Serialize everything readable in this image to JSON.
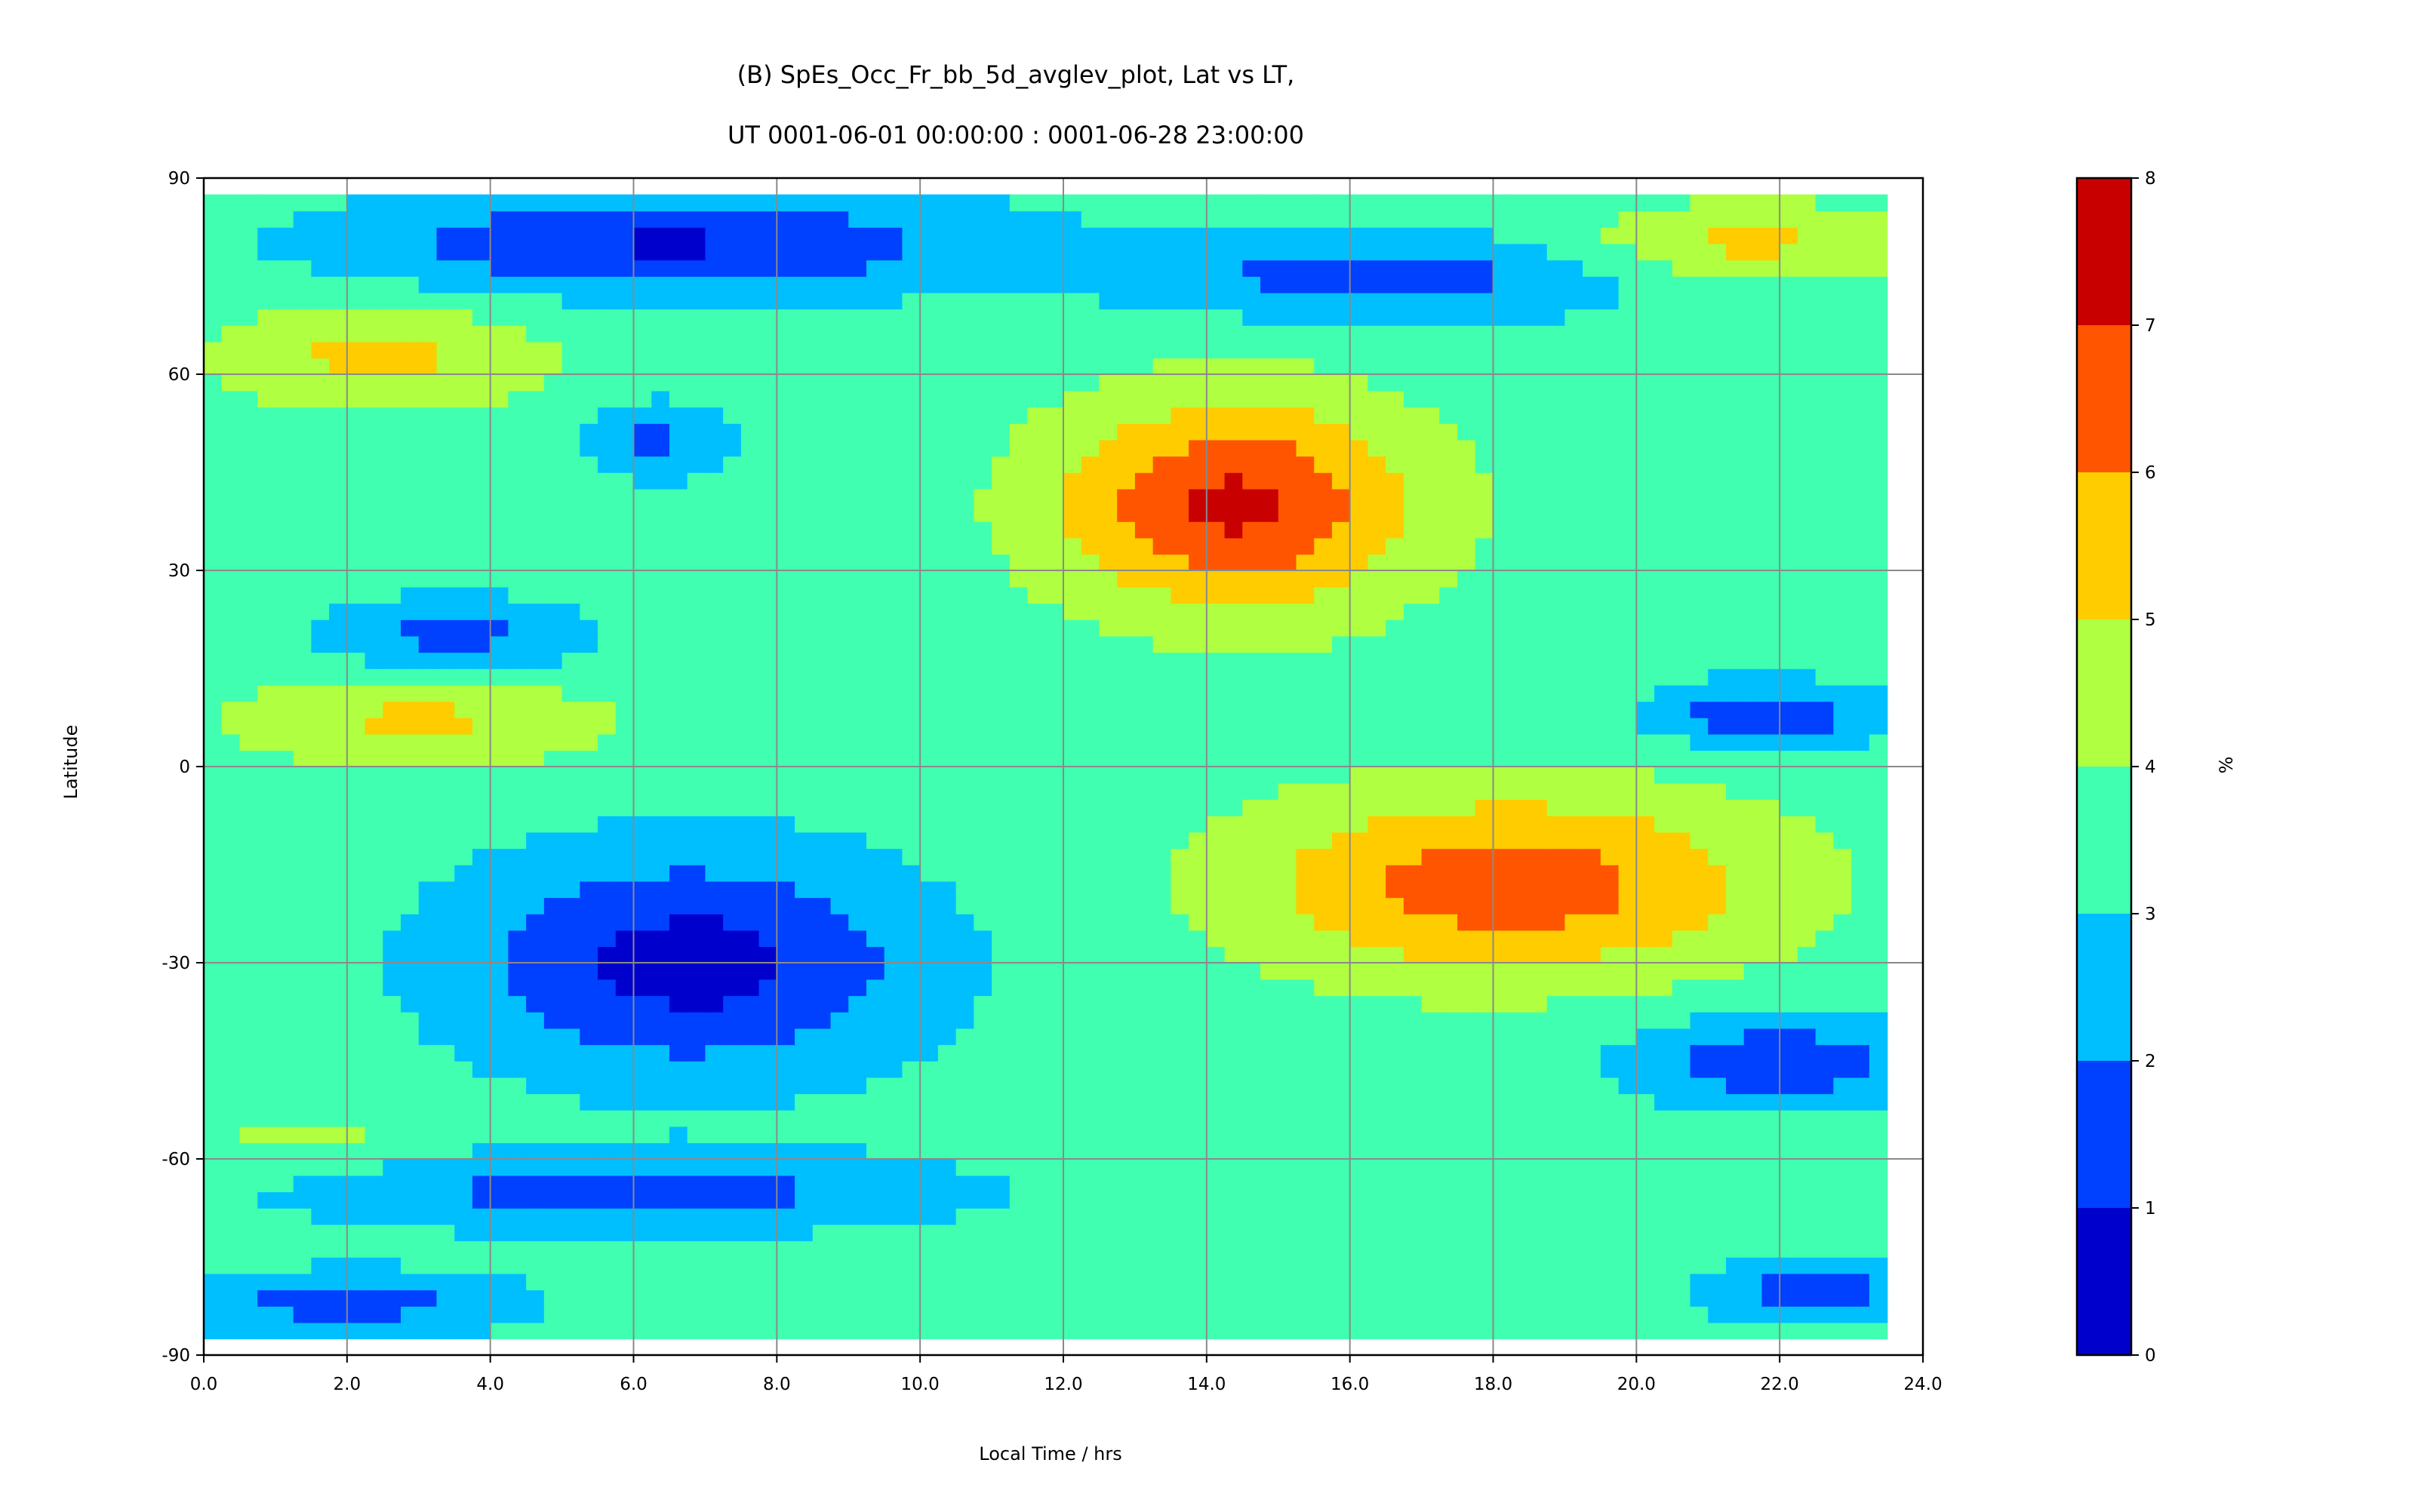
{
  "chart_data": {
    "type": "heatmap",
    "subtype": "filled-contour",
    "title": "(B) SpEs_Occ_Fr_bb_5d_avglev_plot, Lat vs LT,",
    "subtitle": "UT 0001-06-01 00:00:00 : 0001-06-28 23:00:00",
    "xlabel": "Local Time / hrs",
    "ylabel": "Latitude",
    "xlim": [
      0,
      24
    ],
    "ylim": [
      -90,
      90
    ],
    "x_data_extent": [
      0,
      23.5
    ],
    "y_data_extent": [
      -87.5,
      87.5
    ],
    "x_ticks": [
      "0.0",
      "2.0",
      "4.0",
      "6.0",
      "8.0",
      "10.0",
      "12.0",
      "14.0",
      "16.0",
      "18.0",
      "20.0",
      "22.0",
      "24.0"
    ],
    "y_ticks": [
      "90",
      "60",
      "30",
      "0",
      "-30",
      "-60",
      "-90"
    ],
    "grid": true,
    "colorbar": {
      "label": "%",
      "levels": [
        0,
        1,
        2,
        3,
        4,
        5,
        6,
        7,
        8
      ],
      "tick_labels": [
        "0",
        "1",
        "2",
        "3",
        "4",
        "5",
        "6",
        "7",
        "8"
      ],
      "colors": [
        "#0000CD",
        "#0040FF",
        "#00BFFF",
        "#40FFB0",
        "#B0FF40",
        "#FFCC00",
        "#FF5500",
        "#C80000"
      ]
    },
    "background_level": 3.5,
    "features": [
      {
        "lt": 14.4,
        "lat": 40,
        "peak": 7.2,
        "lt_spread": 2.5,
        "lat_spread": 16
      },
      {
        "lt": 18.2,
        "lat": -18,
        "peak": 6.6,
        "lt_spread": 3.6,
        "lat_spread": 14
      },
      {
        "lt": 6.8,
        "lat": -30,
        "peak": 0.6,
        "lt_spread": 3.2,
        "lat_spread": 17
      },
      {
        "lt": 6.5,
        "lat": 80,
        "peak": 0.9,
        "lt_spread": 4.5,
        "lat_spread": 8
      },
      {
        "lt": 16.5,
        "lat": 75,
        "peak": 1.5,
        "lt_spread": 3.5,
        "lat_spread": 7
      },
      {
        "lt": 2.5,
        "lat": 63,
        "peak": 5.3,
        "lt_spread": 2.2,
        "lat_spread": 8
      },
      {
        "lt": 21.5,
        "lat": 80,
        "peak": 5.3,
        "lt_spread": 2.4,
        "lat_spread": 6
      },
      {
        "lt": 3.0,
        "lat": 7,
        "peak": 5.2,
        "lt_spread": 2.5,
        "lat_spread": 7
      },
      {
        "lt": 3.5,
        "lat": 20,
        "peak": 1.7,
        "lt_spread": 1.8,
        "lat_spread": 6
      },
      {
        "lt": 6.3,
        "lat": 50,
        "peak": 1.8,
        "lt_spread": 1.0,
        "lat_spread": 6
      },
      {
        "lt": 21.8,
        "lat": 8,
        "peak": 1.2,
        "lt_spread": 1.6,
        "lat_spread": 5
      },
      {
        "lt": 22.0,
        "lat": -45,
        "peak": 1.3,
        "lt_spread": 2.2,
        "lat_spread": 7
      },
      {
        "lt": 6.0,
        "lat": -65,
        "peak": 1.5,
        "lt_spread": 4.5,
        "lat_spread": 6
      },
      {
        "lt": 1.5,
        "lat": -57,
        "peak": 4.3,
        "lt_spread": 1.6,
        "lat_spread": 5
      },
      {
        "lt": 22.5,
        "lat": -80,
        "peak": 1.5,
        "lt_spread": 1.6,
        "lat_spread": 5
      },
      {
        "lt": 2.0,
        "lat": -82,
        "peak": 1.6,
        "lt_spread": 2.5,
        "lat_spread": 5
      },
      {
        "lt": 15.0,
        "lat": -78,
        "peak": 3.8,
        "lt_spread": 5.0,
        "lat_spread": 5
      }
    ]
  }
}
